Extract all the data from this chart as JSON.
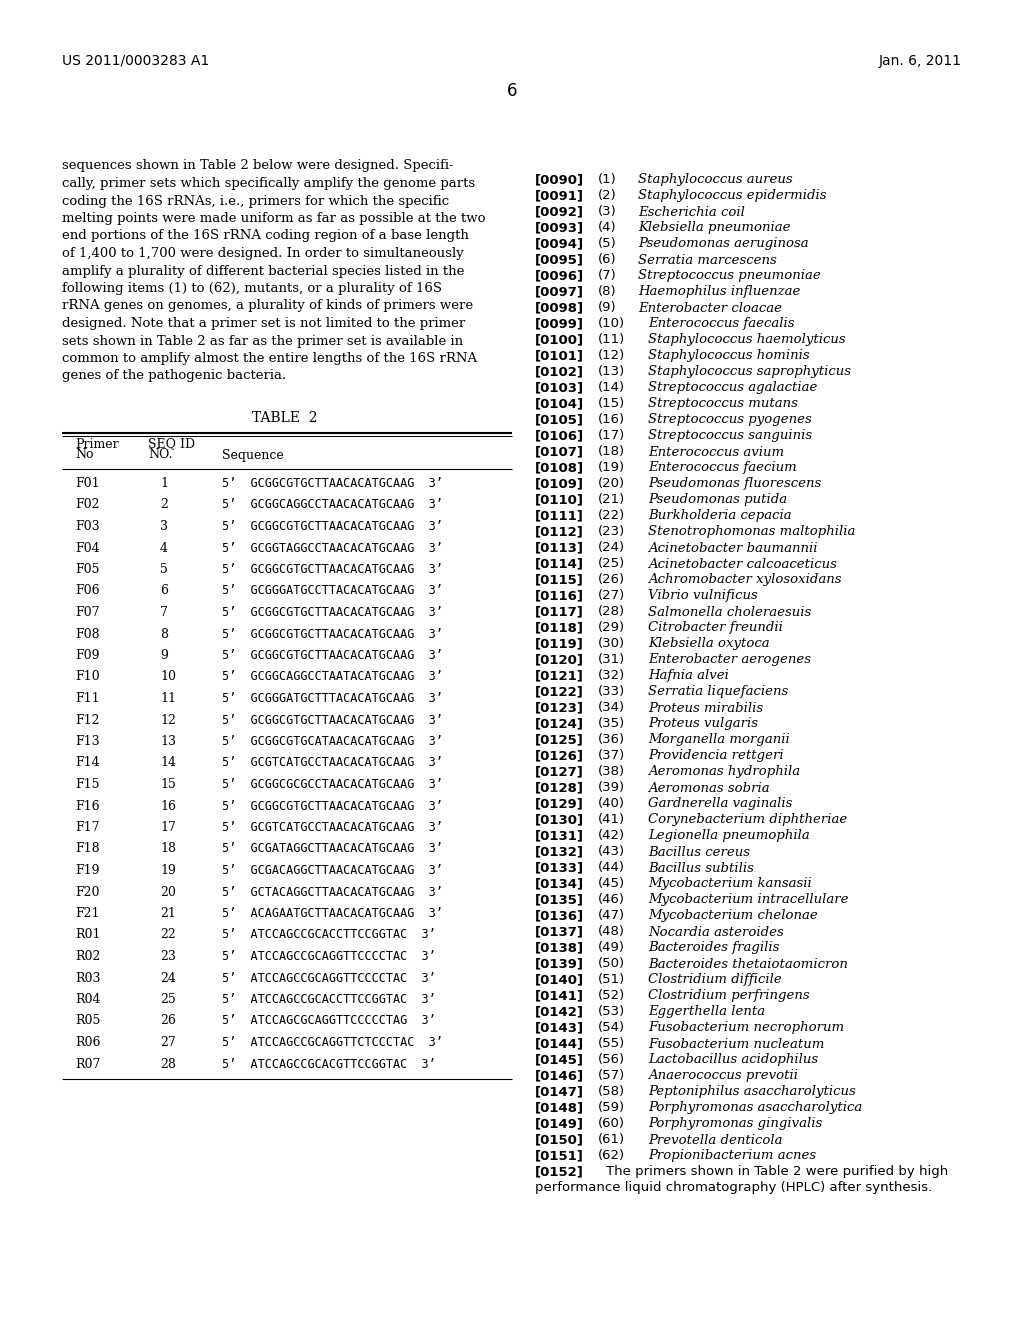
{
  "page_header_left": "US 2011/0003283 A1",
  "page_header_right": "Jan. 6, 2011",
  "page_number": "6",
  "left_paragraph_lines": [
    "sequences shown in Table 2 below were designed. Specifi-",
    "cally, primer sets which specifically amplify the genome parts",
    "coding the 16S rRNAs, i.e., primers for which the specific",
    "melting points were made uniform as far as possible at the two",
    "end portions of the 16S rRNA coding region of a base length",
    "of 1,400 to 1,700 were designed. In order to simultaneously",
    "amplify a plurality of different bacterial species listed in the",
    "following items (1) to (62), mutants, or a plurality of 16S",
    "rRNA genes on genomes, a plurality of kinds of primers were",
    "designed. Note that a primer set is not limited to the primer",
    "sets shown in Table 2 as far as the primer set is available in",
    "common to amplify almost the entire lengths of the 16S rRNA",
    "genes of the pathogenic bacteria."
  ],
  "table_title": "TABLE  2",
  "table_data": [
    [
      "F01",
      "1",
      "5’  GCGGCGTGCTTAACACATGCAAG  3’"
    ],
    [
      "F02",
      "2",
      "5’  GCGGCAGGCCTAACACATGCAAG  3’"
    ],
    [
      "F03",
      "3",
      "5’  GCGGCGTGCTTAACACATGCAAG  3’"
    ],
    [
      "F04",
      "4",
      "5’  GCGGTAGGCCTAACACATGCAAG  3’"
    ],
    [
      "F05",
      "5",
      "5’  GCGGCGTGCTTAACACATGCAAG  3’"
    ],
    [
      "F06",
      "6",
      "5’  GCGGGATGCCTTACACATGCAAG  3’"
    ],
    [
      "F07",
      "7",
      "5’  GCGGCGTGCTTAACACATGCAAG  3’"
    ],
    [
      "F08",
      "8",
      "5’  GCGGCGTGCTTAACACATGCAAG  3’"
    ],
    [
      "F09",
      "9",
      "5’  GCGGCGTGCTTAACACATGCAAG  3’"
    ],
    [
      "F10",
      "10",
      "5’  GCGGCAGGCCTAATACATGCAAG  3’"
    ],
    [
      "F11",
      "11",
      "5’  GCGGGATGCTTTACACATGCAAG  3’"
    ],
    [
      "F12",
      "12",
      "5’  GCGGCGTGCTTAACACATGCAAG  3’"
    ],
    [
      "F13",
      "13",
      "5’  GCGGCGTGCATAACACATGCAAG  3’"
    ],
    [
      "F14",
      "14",
      "5’  GCGTCATGCCTAACACATGCAAG  3’"
    ],
    [
      "F15",
      "15",
      "5’  GCGGCGCGCCTAACACATGCAAG  3’"
    ],
    [
      "F16",
      "16",
      "5’  GCGGCGTGCTTAACACATGCAAG  3’"
    ],
    [
      "F17",
      "17",
      "5’  GCGTCATGCCTAACACATGCAAG  3’"
    ],
    [
      "F18",
      "18",
      "5’  GCGATAGGCTTAACACATGCAAG  3’"
    ],
    [
      "F19",
      "19",
      "5’  GCGACAGGCTTAACACATGCAAG  3’"
    ],
    [
      "F20",
      "20",
      "5’  GCTACAGGCTTAACACATGCAAG  3’"
    ],
    [
      "F21",
      "21",
      "5’  ACAGAATGCTTAACACATGCAAG  3’"
    ],
    [
      "R01",
      "22",
      "5’  ATCCAGCCGCACCTTCCGGTAC  3’"
    ],
    [
      "R02",
      "23",
      "5’  ATCCAGCCGCAGGTTCCCCTAC  3’"
    ],
    [
      "R03",
      "24",
      "5’  ATCCAGCCGCAGGTTCCCCTAC  3’"
    ],
    [
      "R04",
      "25",
      "5’  ATCCAGCCGCACCTTCCGGTAC  3’"
    ],
    [
      "R05",
      "26",
      "5’  ATCCAGCGCAGGTTCCCCCTAG  3’"
    ],
    [
      "R06",
      "27",
      "5’  ATCCAGCCGCAGGTTCTCCCTAC  3’"
    ],
    [
      "R07",
      "28",
      "5’  ATCCAGCCGCACGTTCCGGTAC  3’"
    ]
  ],
  "right_entries": [
    [
      "[0090]",
      "(1)",
      "Staphylococcus aureus"
    ],
    [
      "[0091]",
      "(2)",
      "Staphylococcus epidermidis"
    ],
    [
      "[0092]",
      "(3)",
      "Escherichia coil"
    ],
    [
      "[0093]",
      "(4)",
      "Klebsiella pneumoniae"
    ],
    [
      "[0094]",
      "(5)",
      "Pseudomonas aeruginosa"
    ],
    [
      "[0095]",
      "(6)",
      "Serratia marcescens"
    ],
    [
      "[0096]",
      "(7)",
      "Streptococcus pneumoniae"
    ],
    [
      "[0097]",
      "(8)",
      "Haemophilus influenzae"
    ],
    [
      "[0098]",
      "(9)",
      "Enterobacter cloacae"
    ],
    [
      "[0099]",
      "(10)",
      "Enterococcus faecalis"
    ],
    [
      "[0100]",
      "(11)",
      "Staphylococcus haemolyticus"
    ],
    [
      "[0101]",
      "(12)",
      "Staphylococcus hominis"
    ],
    [
      "[0102]",
      "(13)",
      "Staphylococcus saprophyticus"
    ],
    [
      "[0103]",
      "(14)",
      "Streptococcus agalactiae"
    ],
    [
      "[0104]",
      "(15)",
      "Streptococcus mutans"
    ],
    [
      "[0105]",
      "(16)",
      "Streptococcus pyogenes"
    ],
    [
      "[0106]",
      "(17)",
      "Streptococcus sanguinis"
    ],
    [
      "[0107]",
      "(18)",
      "Enterococcus avium"
    ],
    [
      "[0108]",
      "(19)",
      "Enterococcus faecium"
    ],
    [
      "[0109]",
      "(20)",
      "Pseudomonas fluorescens"
    ],
    [
      "[0110]",
      "(21)",
      "Pseudomonas putida"
    ],
    [
      "[0111]",
      "(22)",
      "Burkholderia cepacia"
    ],
    [
      "[0112]",
      "(23)",
      "Stenotrophomonas maltophilia"
    ],
    [
      "[0113]",
      "(24)",
      "Acinetobacter baumannii"
    ],
    [
      "[0114]",
      "(25)",
      "Acinetobacter calcoaceticus"
    ],
    [
      "[0115]",
      "(26)",
      "Achromobacter xylosoxidans"
    ],
    [
      "[0116]",
      "(27)",
      "Vibrio vulnificus"
    ],
    [
      "[0117]",
      "(28)",
      "Salmonella choleraesuis"
    ],
    [
      "[0118]",
      "(29)",
      "Citrobacter freundii"
    ],
    [
      "[0119]",
      "(30)",
      "Klebsiella oxytoca"
    ],
    [
      "[0120]",
      "(31)",
      "Enterobacter aerogenes"
    ],
    [
      "[0121]",
      "(32)",
      "Hafnia alvei"
    ],
    [
      "[0122]",
      "(33)",
      "Serratia liquefaciens"
    ],
    [
      "[0123]",
      "(34)",
      "Proteus mirabilis"
    ],
    [
      "[0124]",
      "(35)",
      "Proteus vulgaris"
    ],
    [
      "[0125]",
      "(36)",
      "Morganella morganii"
    ],
    [
      "[0126]",
      "(37)",
      "Providencia rettgeri"
    ],
    [
      "[0127]",
      "(38)",
      "Aeromonas hydrophila"
    ],
    [
      "[0128]",
      "(39)",
      "Aeromonas sobria"
    ],
    [
      "[0129]",
      "(40)",
      "Gardnerella vaginalis"
    ],
    [
      "[0130]",
      "(41)",
      "Corynebacterium diphtheriae"
    ],
    [
      "[0131]",
      "(42)",
      "Legionella pneumophila"
    ],
    [
      "[0132]",
      "(43)",
      "Bacillus cereus"
    ],
    [
      "[0133]",
      "(44)",
      "Bacillus subtilis"
    ],
    [
      "[0134]",
      "(45)",
      "Mycobacterium kansasii"
    ],
    [
      "[0135]",
      "(46)",
      "Mycobacterium intracellulare"
    ],
    [
      "[0136]",
      "(47)",
      "Mycobacterium chelonae"
    ],
    [
      "[0137]",
      "(48)",
      "Nocardia asteroides"
    ],
    [
      "[0138]",
      "(49)",
      "Bacteroides fragilis"
    ],
    [
      "[0139]",
      "(50)",
      "Bacteroides thetaiotaomicron"
    ],
    [
      "[0140]",
      "(51)",
      "Clostridium difficile"
    ],
    [
      "[0141]",
      "(52)",
      "Clostridium perfringens"
    ],
    [
      "[0142]",
      "(53)",
      "Eggerthella lenta"
    ],
    [
      "[0143]",
      "(54)",
      "Fusobacterium necrophorum"
    ],
    [
      "[0144]",
      "(55)",
      "Fusobacterium nucleatum"
    ],
    [
      "[0145]",
      "(56)",
      "Lactobacillus acidophilus"
    ],
    [
      "[0146]",
      "(57)",
      "Anaerococcus prevotii"
    ],
    [
      "[0147]",
      "(58)",
      "Peptoniphilus asaccharolyticus"
    ],
    [
      "[0148]",
      "(59)",
      "Porphyromonas asaccharolytica"
    ],
    [
      "[0149]",
      "(60)",
      "Porphyromonas gingivalis"
    ],
    [
      "[0150]",
      "(61)",
      "Prevotella denticola"
    ],
    [
      "[0151]",
      "(62)",
      "Propionibacterium acnes"
    ]
  ],
  "last_entry_bracket": "[0152]",
  "last_entry_text_line1": "The primers shown in Table 2 were purified by high",
  "last_entry_text_line2": "performance liquid chromatography (HPLC) after synthesis.",
  "bg_color": "#ffffff",
  "text_color": "#000000"
}
